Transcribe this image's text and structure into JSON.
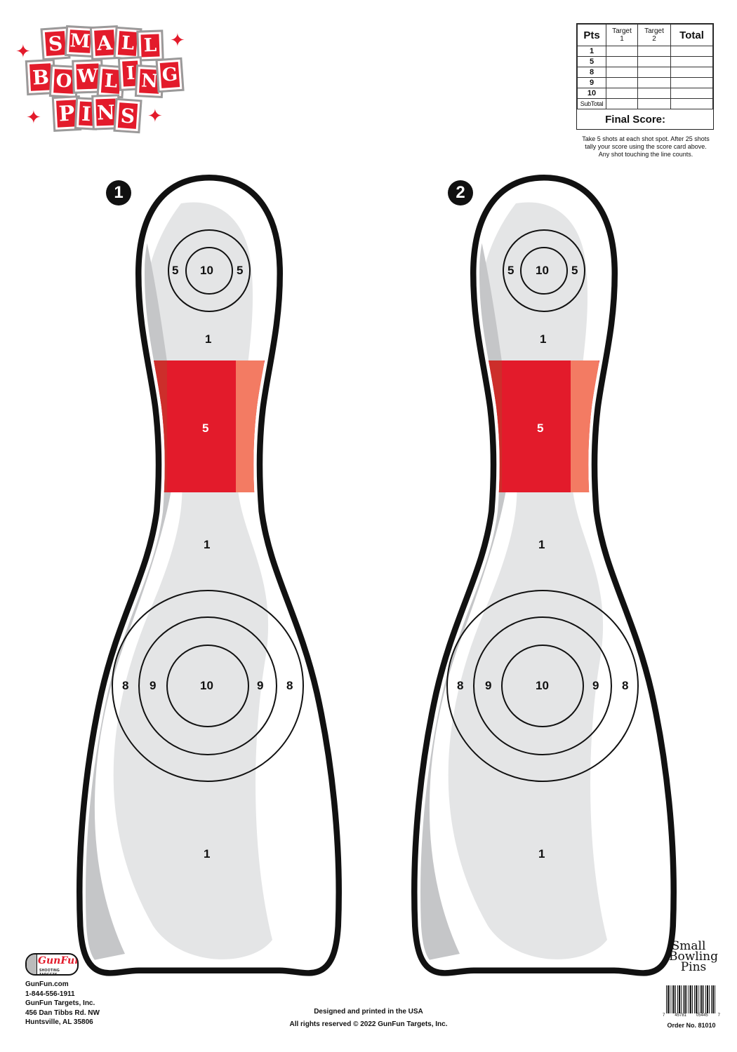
{
  "title": {
    "line1": [
      "S",
      "M",
      "A",
      "L",
      "L"
    ],
    "line2": [
      "B",
      "O",
      "W",
      "L",
      "I",
      "N",
      "G"
    ],
    "line3": [
      "P",
      "I",
      "N",
      "S"
    ],
    "sparkle_glyph": "✦",
    "brand_color": "#e31b2b"
  },
  "scorecard": {
    "headers": {
      "pts": "Pts",
      "target1_a": "Target",
      "target1_b": "1",
      "target2_a": "Target",
      "target2_b": "2",
      "total": "Total"
    },
    "rows": [
      "1",
      "5",
      "8",
      "9",
      "10",
      "SubTotal"
    ],
    "final_score_label": "Final Score:",
    "instructions": [
      "Take 5 shots at each shot spot.  After 25 shots",
      "tally your score using the score card above.",
      "Any shot touching the line counts."
    ]
  },
  "targets": [
    {
      "badge": "1",
      "head": {
        "center": "10",
        "left": "5",
        "right": "5"
      },
      "upper_zone": "1",
      "band": "5",
      "mid_zone": "1",
      "body": {
        "center": "10",
        "left_inner": "9",
        "right_inner": "9",
        "left_outer": "8",
        "right_outer": "8"
      },
      "lower_zone": "1"
    },
    {
      "badge": "2",
      "head": {
        "center": "10",
        "left": "5",
        "right": "5"
      },
      "upper_zone": "1",
      "band": "5",
      "mid_zone": "1",
      "body": {
        "center": "10",
        "left_inner": "9",
        "right_inner": "9",
        "left_outer": "8",
        "right_outer": "8"
      },
      "lower_zone": "1"
    }
  ],
  "footer": {
    "logo_text": "GunFun",
    "logo_sub": "SHOOTING TARGETS",
    "website": "GunFun.com",
    "phone": "1-844-556-1911",
    "company": "GunFun Targets, Inc.",
    "street": "456 Dan Tibbs Rd. NW",
    "city": "Huntsville, AL 35806",
    "designed": "Designed and printed in the USA",
    "rights": "All rights reserved © 2022  GunFun Targets, Inc.",
    "product_name_1": "Small",
    "product_name_2": "Bowling",
    "product_name_3": "Pins",
    "barcode_digits": [
      "7",
      "45781",
      "05445",
      "7"
    ],
    "order_no": "Order No. 81010"
  },
  "colors": {
    "red": "#e31b2b",
    "ink": "#111111",
    "pin_shade": "#e4e5e6",
    "pin_dark_shade": "#c5c6c8"
  }
}
